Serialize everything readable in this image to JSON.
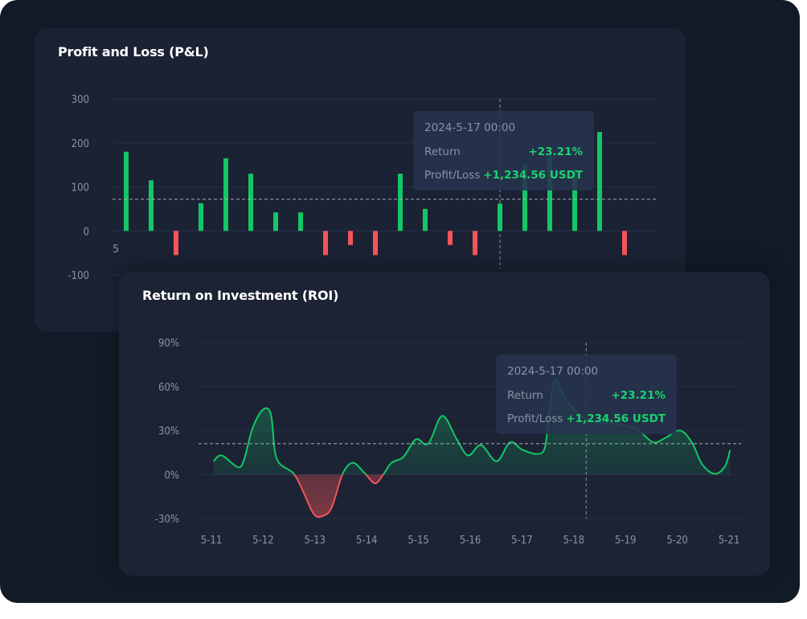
{
  "colors": {
    "background": "#131a27",
    "card": "#1b2233",
    "positive": "#13c767",
    "negative": "#f4555a",
    "grid": "#24304a",
    "tooltip": "#27334d"
  },
  "pnl": {
    "title": "Profit and Loss (P&L)",
    "tooltip": {
      "date": "2024-5-17 00:00",
      "return_label": "Return",
      "return_value": "+23.21%",
      "pl_label": "Profit/Loss",
      "pl_value": "+1,234.56 USDT"
    },
    "partial_x_label": "5"
  },
  "roi": {
    "title": "Return on Investment (ROI)",
    "tooltip": {
      "date": "2024-5-17 00:00",
      "return_label": "Return",
      "return_value": "+23.21%",
      "pl_label": "Profit/Loss",
      "pl_value": "+1,234.56 USDT"
    }
  },
  "chart_data": [
    {
      "type": "bar",
      "title": "Profit and Loss (P&L)",
      "ylim": [
        -100,
        300
      ],
      "yticks": [
        "300",
        "200",
        "100",
        "0",
        "-100"
      ],
      "ytick_values": [
        300,
        200,
        100,
        0,
        -100
      ],
      "grid": true,
      "values": [
        180,
        115,
        -55,
        63,
        165,
        130,
        42,
        42,
        -55,
        -32,
        -55,
        130,
        50,
        -32,
        -55,
        62,
        150,
        170,
        140,
        225,
        -55
      ],
      "reference_line": 72,
      "highlight_index": 15
    },
    {
      "type": "area",
      "title": "Return on Investment (ROI)",
      "ylim": [
        -30,
        90
      ],
      "yticks": [
        "90%",
        "60%",
        "30%",
        "0%",
        "-30%"
      ],
      "ytick_values": [
        90,
        60,
        30,
        0,
        -30
      ],
      "xticks": [
        "5-11",
        "5-12",
        "5-13",
        "5-14",
        "5-15",
        "5-16",
        "5-17",
        "5-18",
        "5-19",
        "5-20",
        "5-21"
      ],
      "grid": true,
      "reference_line": 21,
      "highlight_x": 7.24,
      "points": [
        [
          0.04,
          9
        ],
        [
          0.2,
          13
        ],
        [
          0.51,
          5
        ],
        [
          0.63,
          10
        ],
        [
          0.79,
          31
        ],
        [
          0.99,
          44
        ],
        [
          1.15,
          41
        ],
        [
          1.26,
          11
        ],
        [
          1.58,
          1
        ],
        [
          1.74,
          -9
        ],
        [
          1.98,
          -27
        ],
        [
          2.17,
          -28
        ],
        [
          2.33,
          -22
        ],
        [
          2.53,
          0
        ],
        [
          2.73,
          8
        ],
        [
          2.96,
          1
        ],
        [
          3.16,
          -6
        ],
        [
          3.32,
          0
        ],
        [
          3.48,
          8
        ],
        [
          3.71,
          12
        ],
        [
          3.95,
          24
        ],
        [
          4.19,
          21
        ],
        [
          4.46,
          40
        ],
        [
          4.74,
          24
        ],
        [
          4.96,
          13
        ],
        [
          5.21,
          20
        ],
        [
          5.51,
          9
        ],
        [
          5.77,
          22
        ],
        [
          6.0,
          17
        ],
        [
          6.28,
          14
        ],
        [
          6.44,
          18
        ],
        [
          6.52,
          40
        ],
        [
          6.64,
          64
        ],
        [
          6.87,
          50
        ],
        [
          7.27,
          37
        ],
        [
          7.74,
          35
        ],
        [
          8.21,
          31
        ],
        [
          8.53,
          22
        ],
        [
          8.77,
          25
        ],
        [
          9.05,
          30
        ],
        [
          9.28,
          22
        ],
        [
          9.48,
          7
        ],
        [
          9.72,
          0.4
        ],
        [
          9.92,
          5.5
        ],
        [
          10.02,
          16.6
        ]
      ]
    }
  ]
}
